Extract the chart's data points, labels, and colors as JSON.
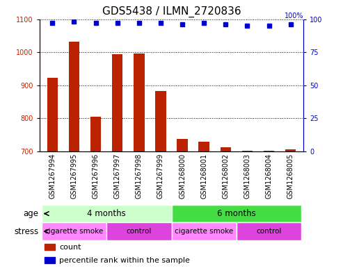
{
  "title": "GDS5438 / ILMN_2720836",
  "samples": [
    "GSM1267994",
    "GSM1267995",
    "GSM1267996",
    "GSM1267997",
    "GSM1267998",
    "GSM1267999",
    "GSM1268000",
    "GSM1268001",
    "GSM1268002",
    "GSM1268003",
    "GSM1268004",
    "GSM1268005"
  ],
  "counts": [
    922,
    1032,
    806,
    993,
    997,
    882,
    738,
    730,
    712,
    703,
    702,
    707
  ],
  "percentiles": [
    97,
    98,
    97,
    97,
    97,
    97,
    96,
    97,
    96,
    95,
    95,
    96
  ],
  "ylim_left": [
    700,
    1100
  ],
  "ylim_right": [
    0,
    100
  ],
  "yticks_left": [
    700,
    800,
    900,
    1000,
    1100
  ],
  "yticks_right": [
    0,
    25,
    50,
    75,
    100
  ],
  "bar_color": "#bb2200",
  "dot_color": "#0000cc",
  "age_groups": [
    {
      "label": "4 months",
      "start": 0,
      "end": 6,
      "color": "#ccffcc"
    },
    {
      "label": "6 months",
      "start": 6,
      "end": 12,
      "color": "#44dd44"
    }
  ],
  "stress_groups": [
    {
      "label": "cigarette smoke",
      "start": 0,
      "end": 3,
      "color": "#ff88ff"
    },
    {
      "label": "control",
      "start": 3,
      "end": 6,
      "color": "#dd44dd"
    },
    {
      "label": "cigarette smoke",
      "start": 6,
      "end": 9,
      "color": "#ff88ff"
    },
    {
      "label": "control",
      "start": 9,
      "end": 12,
      "color": "#dd44dd"
    }
  ],
  "legend_items": [
    {
      "label": "count",
      "color": "#bb2200"
    },
    {
      "label": "percentile rank within the sample",
      "color": "#0000cc"
    }
  ],
  "age_label": "age",
  "stress_label": "stress",
  "bar_width": 0.5,
  "tick_label_fontsize": 7,
  "title_fontsize": 11,
  "xlim": [
    -0.6,
    11.6
  ]
}
